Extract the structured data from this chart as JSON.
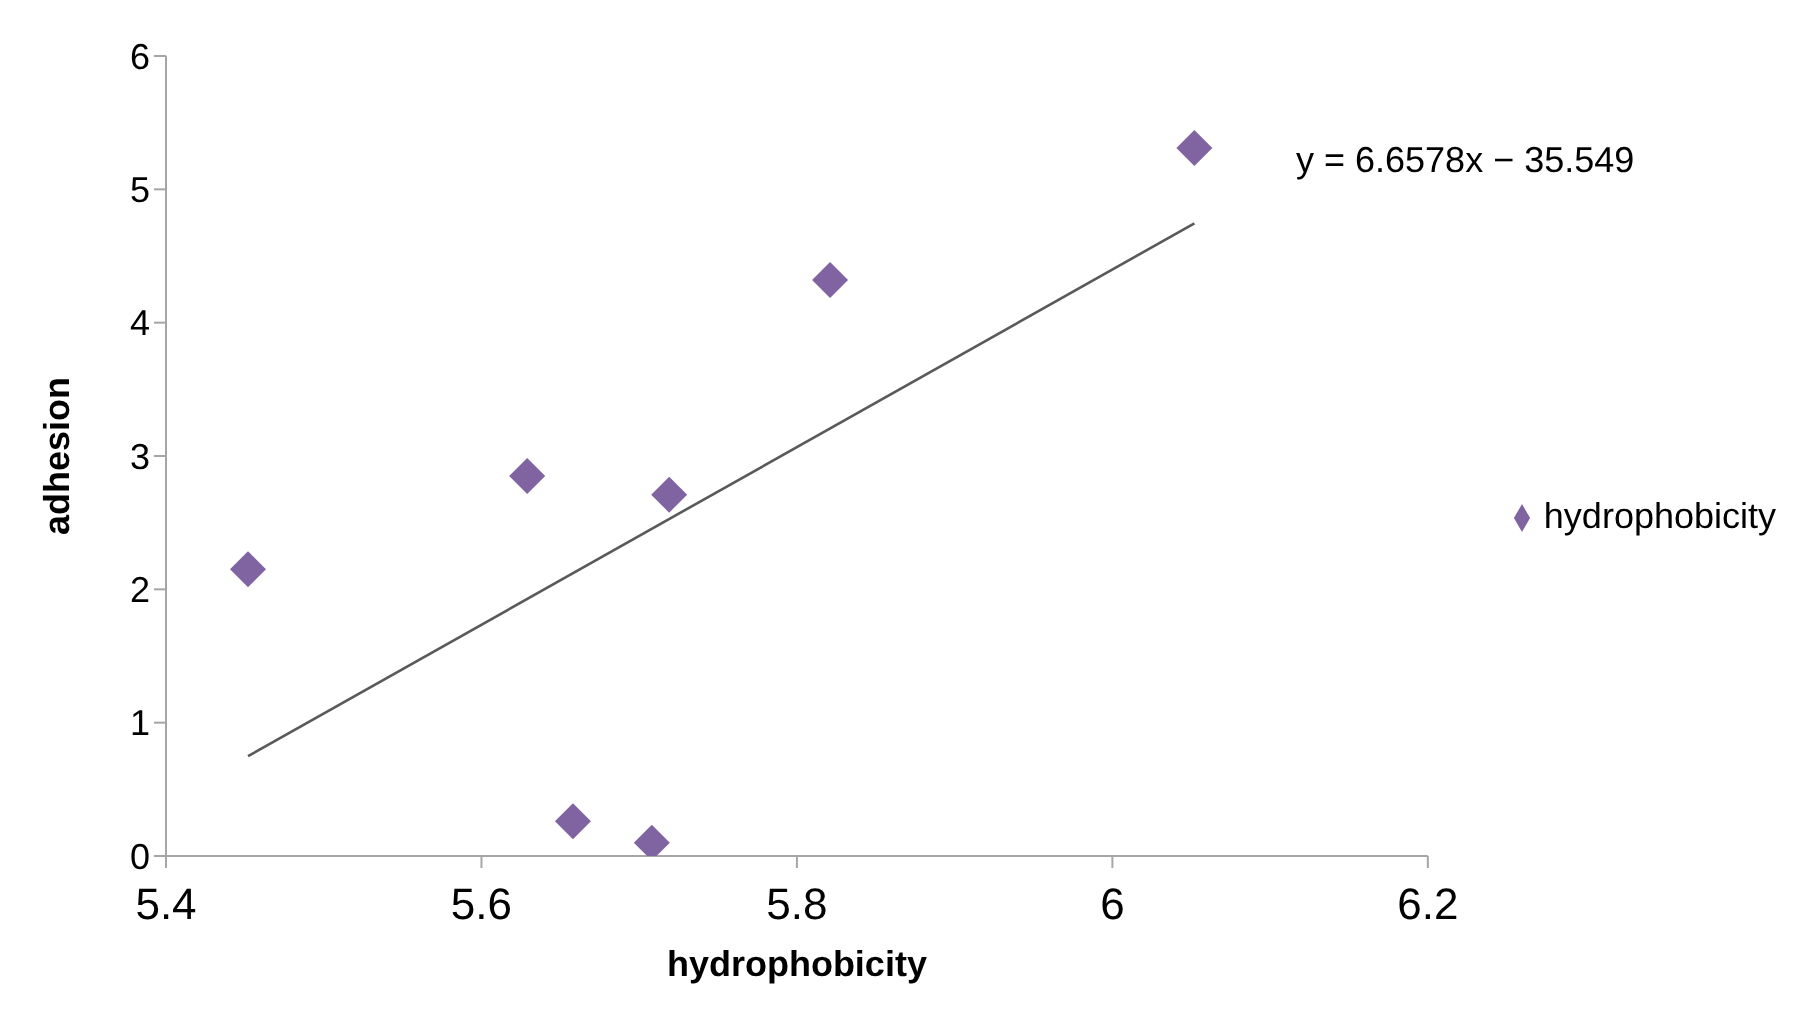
{
  "chart_data": {
    "type": "scatter",
    "xlabel": "hydrophobicity",
    "ylabel": "adhesion",
    "annotations": [
      "y = 6.6578x − 35.549"
    ],
    "xlim": [
      5.4,
      6.2
    ],
    "xticks": [
      5.4,
      5.6,
      5.8,
      6,
      6.2
    ],
    "ylim": [
      0,
      6
    ],
    "yticks": [
      0,
      1,
      2,
      3,
      4,
      5,
      6
    ],
    "grid": false,
    "legend": "right",
    "marker": "diamond",
    "series": [
      {
        "name": "hydrophobicity",
        "color": "#8064a2",
        "x": [
          5.452,
          5.629,
          5.719,
          5.658,
          5.708,
          5.821,
          6.052
        ],
        "values": [
          2.15,
          2.85,
          2.71,
          0.26,
          0.1,
          4.32,
          5.31
        ]
      },
      {
        "type": "line",
        "color": "#595959",
        "marker": "none",
        "line_style": "solid",
        "x": [
          5.452,
          6.052
        ],
        "values": [
          0.749,
          4.745
        ]
      }
    ]
  }
}
